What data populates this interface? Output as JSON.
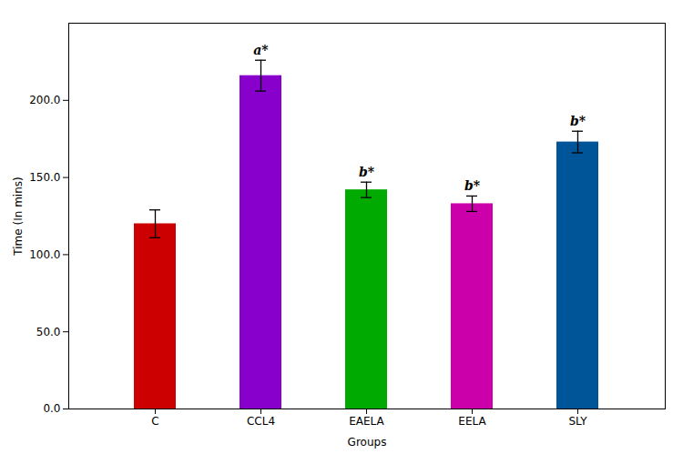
{
  "chart_data": {
    "type": "bar",
    "xlabel": "Groups",
    "ylabel": "Time (In mins)",
    "categories": [
      "C",
      "CCL4",
      "EAELA",
      "EELA",
      "SLY"
    ],
    "values": [
      120.0,
      216.0,
      142.0,
      133.0,
      173.0
    ],
    "errors": [
      9.0,
      10.0,
      5.0,
      5.0,
      7.0
    ],
    "colors": [
      "#cc0000",
      "#8800cc",
      "#00aa00",
      "#cc00aa",
      "#005599"
    ],
    "annotations": [
      null,
      "a*",
      "b*",
      "b*",
      "b*"
    ],
    "ylim": [
      0,
      250
    ],
    "yticks": [
      {
        "value": 0,
        "label": "0.0"
      },
      {
        "value": 50,
        "label": "50.0"
      },
      {
        "value": 100,
        "label": "100.0"
      },
      {
        "value": 150,
        "label": "150.0"
      },
      {
        "value": 200,
        "label": "200.0"
      }
    ]
  }
}
